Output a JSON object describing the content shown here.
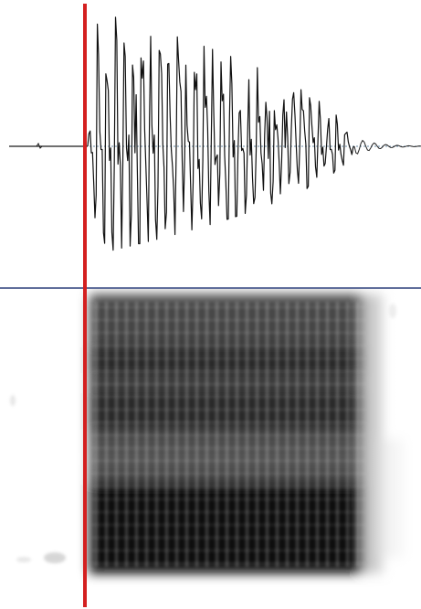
{
  "viewer": {
    "colors": {
      "background": "#ffffff",
      "waveform": "#111111",
      "baseline": "#1a1a1a",
      "zero_line_dotted": "#6a8ca8",
      "divider": "#2b3f7a",
      "cursor": "#d42020",
      "spectrogram_dark": "#0a0a0a",
      "spectrogram_light": "#ffffff"
    }
  }
}
